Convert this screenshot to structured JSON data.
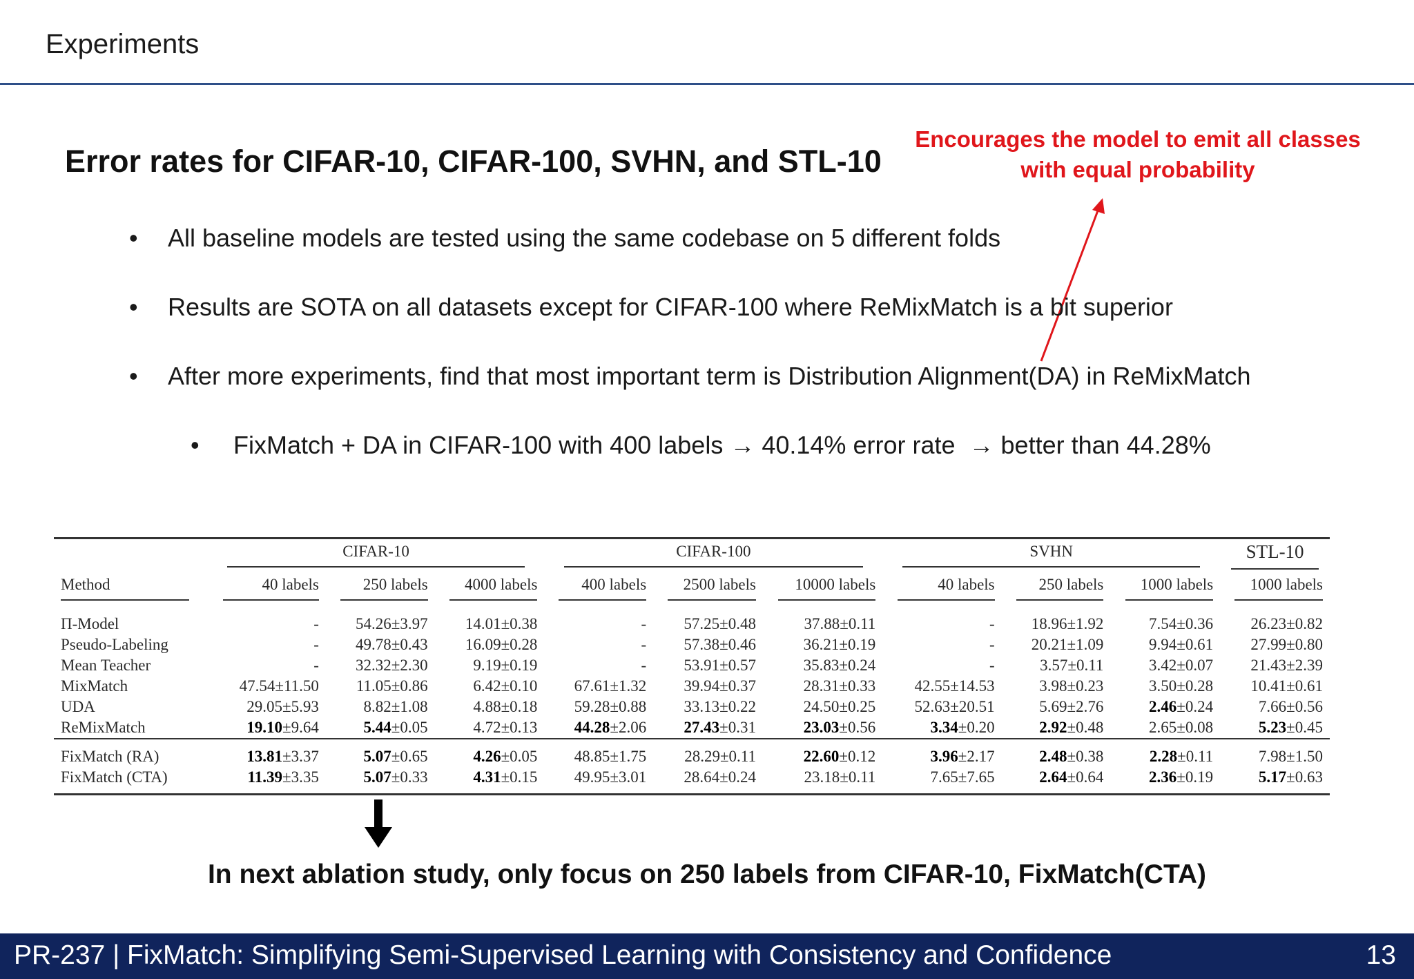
{
  "slide": {
    "title": "Experiments",
    "heading": "Error rates for CIFAR-10, CIFAR-100, SVHN, and STL-10",
    "annotation_line1": "Encourages the model to emit all classes",
    "annotation_line2": "with equal probability",
    "bullets": [
      "All baseline models are tested using the same codebase on 5 different folds",
      "Results are SOTA on all datasets except for CIFAR-100 where ReMixMatch is a bit superior",
      "After more experiments, find that most important term is Distribution Alignment(DA) in ReMixMatch"
    ],
    "sub_bullet": {
      "part1": "FixMatch + DA in CIFAR-100 with 400 labels",
      "arrow1": "→",
      "part2": "40.14% error rate",
      "arrow2": "→",
      "part3": "better than 44.28%"
    },
    "bullet_symbol": "•",
    "bottom_note": "In next ablation study, only focus on 250 labels from CIFAR-10, FixMatch(CTA)",
    "footer": "PR-237 | FixMatch: Simplifying Semi-Supervised Learning with Consistency and Confidence",
    "page_number": "13"
  },
  "table": {
    "groups": [
      "CIFAR-10",
      "CIFAR-100",
      "SVHN",
      "STL-10"
    ],
    "method_header": "Method",
    "subheaders": [
      "40 labels",
      "250 labels",
      "4000 labels",
      "400 labels",
      "2500 labels",
      "10000 labels",
      "40 labels",
      "250 labels",
      "1000 labels",
      "1000 labels"
    ],
    "rows": [
      {
        "method": "Π-Model",
        "cells": [
          {
            "v": "-"
          },
          {
            "v": "54.26",
            "s": "±3.97"
          },
          {
            "v": "14.01",
            "s": "±0.38"
          },
          {
            "v": "-"
          },
          {
            "v": "57.25",
            "s": "±0.48"
          },
          {
            "v": "37.88",
            "s": "±0.11"
          },
          {
            "v": "-"
          },
          {
            "v": "18.96",
            "s": "±1.92"
          },
          {
            "v": "7.54",
            "s": "±0.36"
          },
          {
            "v": "26.23",
            "s": "±0.82"
          }
        ]
      },
      {
        "method": "Pseudo-Labeling",
        "cells": [
          {
            "v": "-"
          },
          {
            "v": "49.78",
            "s": "±0.43"
          },
          {
            "v": "16.09",
            "s": "±0.28"
          },
          {
            "v": "-"
          },
          {
            "v": "57.38",
            "s": "±0.46"
          },
          {
            "v": "36.21",
            "s": "±0.19"
          },
          {
            "v": "-"
          },
          {
            "v": "20.21",
            "s": "±1.09"
          },
          {
            "v": "9.94",
            "s": "±0.61"
          },
          {
            "v": "27.99",
            "s": "±0.80"
          }
        ]
      },
      {
        "method": "Mean Teacher",
        "cells": [
          {
            "v": "-"
          },
          {
            "v": "32.32",
            "s": "±2.30"
          },
          {
            "v": "9.19",
            "s": "±0.19"
          },
          {
            "v": "-"
          },
          {
            "v": "53.91",
            "s": "±0.57"
          },
          {
            "v": "35.83",
            "s": "±0.24"
          },
          {
            "v": "-"
          },
          {
            "v": "3.57",
            "s": "±0.11"
          },
          {
            "v": "3.42",
            "s": "±0.07"
          },
          {
            "v": "21.43",
            "s": "±2.39"
          }
        ]
      },
      {
        "method": "MixMatch",
        "cells": [
          {
            "v": "47.54",
            "s": "±11.50"
          },
          {
            "v": "11.05",
            "s": "±0.86"
          },
          {
            "v": "6.42",
            "s": "±0.10"
          },
          {
            "v": "67.61",
            "s": "±1.32"
          },
          {
            "v": "39.94",
            "s": "±0.37"
          },
          {
            "v": "28.31",
            "s": "±0.33"
          },
          {
            "v": "42.55",
            "s": "±14.53"
          },
          {
            "v": "3.98",
            "s": "±0.23"
          },
          {
            "v": "3.50",
            "s": "±0.28"
          },
          {
            "v": "10.41",
            "s": "±0.61"
          }
        ]
      },
      {
        "method": "UDA",
        "cells": [
          {
            "v": "29.05",
            "s": "±5.93"
          },
          {
            "v": "8.82",
            "s": "±1.08"
          },
          {
            "v": "4.88",
            "s": "±0.18"
          },
          {
            "v": "59.28",
            "s": "±0.88"
          },
          {
            "v": "33.13",
            "s": "±0.22"
          },
          {
            "v": "24.50",
            "s": "±0.25"
          },
          {
            "v": "52.63",
            "s": "±20.51"
          },
          {
            "v": "5.69",
            "s": "±2.76"
          },
          {
            "v": "2.46",
            "s": "±0.24",
            "b": true
          },
          {
            "v": "7.66",
            "s": "±0.56"
          }
        ]
      },
      {
        "method": "ReMixMatch",
        "cells": [
          {
            "v": "19.10",
            "s": "±9.64",
            "b": true
          },
          {
            "v": "5.44",
            "s": "±0.05",
            "b": true
          },
          {
            "v": "4.72",
            "s": "±0.13"
          },
          {
            "v": "44.28",
            "s": "±2.06",
            "b": true
          },
          {
            "v": "27.43",
            "s": "±0.31",
            "b": true
          },
          {
            "v": "23.03",
            "s": "±0.56",
            "b": true
          },
          {
            "v": "3.34",
            "s": "±0.20",
            "b": true
          },
          {
            "v": "2.92",
            "s": "±0.48",
            "b": true
          },
          {
            "v": "2.65",
            "s": "±0.08"
          },
          {
            "v": "5.23",
            "s": "±0.45",
            "b": true
          }
        ]
      },
      {
        "method": "FixMatch (RA)",
        "cells": [
          {
            "v": "13.81",
            "s": "±3.37",
            "b": true
          },
          {
            "v": "5.07",
            "s": "±0.65",
            "b": true
          },
          {
            "v": "4.26",
            "s": "±0.05",
            "b": true
          },
          {
            "v": "48.85",
            "s": "±1.75"
          },
          {
            "v": "28.29",
            "s": "±0.11"
          },
          {
            "v": "22.60",
            "s": "±0.12",
            "b": true
          },
          {
            "v": "3.96",
            "s": "±2.17",
            "b": true
          },
          {
            "v": "2.48",
            "s": "±0.38",
            "b": true
          },
          {
            "v": "2.28",
            "s": "±0.11",
            "b": true
          },
          {
            "v": "7.98",
            "s": "±1.50"
          }
        ]
      },
      {
        "method": "FixMatch (CTA)",
        "cells": [
          {
            "v": "11.39",
            "s": "±3.35",
            "b": true
          },
          {
            "v": "5.07",
            "s": "±0.33",
            "b": true
          },
          {
            "v": "4.31",
            "s": "±0.15",
            "b": true
          },
          {
            "v": "49.95",
            "s": "±3.01"
          },
          {
            "v": "28.64",
            "s": "±0.24"
          },
          {
            "v": "23.18",
            "s": "±0.11"
          },
          {
            "v": "7.65",
            "s": "±7.65"
          },
          {
            "v": "2.64",
            "s": "±0.64",
            "b": true
          },
          {
            "v": "2.36",
            "s": "±0.19",
            "b": true
          },
          {
            "v": "5.17",
            "s": "±0.63",
            "b": true
          }
        ]
      }
    ]
  },
  "colors": {
    "annotation": "#e0161b",
    "footer_bg": "#10245c",
    "title_rule": "#2e4f88"
  }
}
